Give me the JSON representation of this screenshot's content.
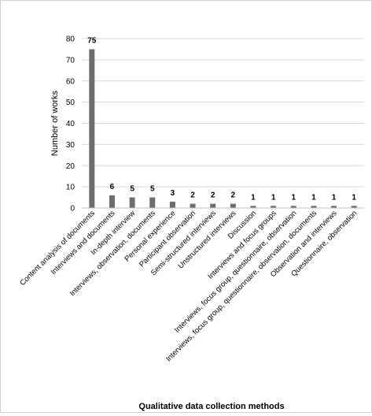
{
  "chart_data": {
    "type": "bar",
    "title": "",
    "xlabel": "Qualitative data collection methods",
    "ylabel": "Number of works",
    "ylim": [
      0,
      80
    ],
    "yticks": [
      0,
      10,
      20,
      30,
      40,
      50,
      60,
      70,
      80
    ],
    "grid": true,
    "legend": "none",
    "bar_color": "#6d6d6d",
    "grid_color": "#d9d9d9",
    "categories": [
      "Content analysis of documents",
      "Interviews and documents",
      "In-depth interview",
      "Interviews, observation, documents",
      "Personal experience",
      "Participant observation",
      "Semi-structured interviews",
      "Unstructured interviews",
      "Discussion",
      "Interviews and focus groups",
      "Interviews, focus group, questionnaire, observation",
      "Interviews, focus group, questionnaire, observation, documents",
      "Observation and interviews",
      "Questionnaire, observation"
    ],
    "values": [
      75,
      6,
      5,
      5,
      3,
      2,
      2,
      2,
      1,
      1,
      1,
      1,
      1,
      1
    ]
  }
}
